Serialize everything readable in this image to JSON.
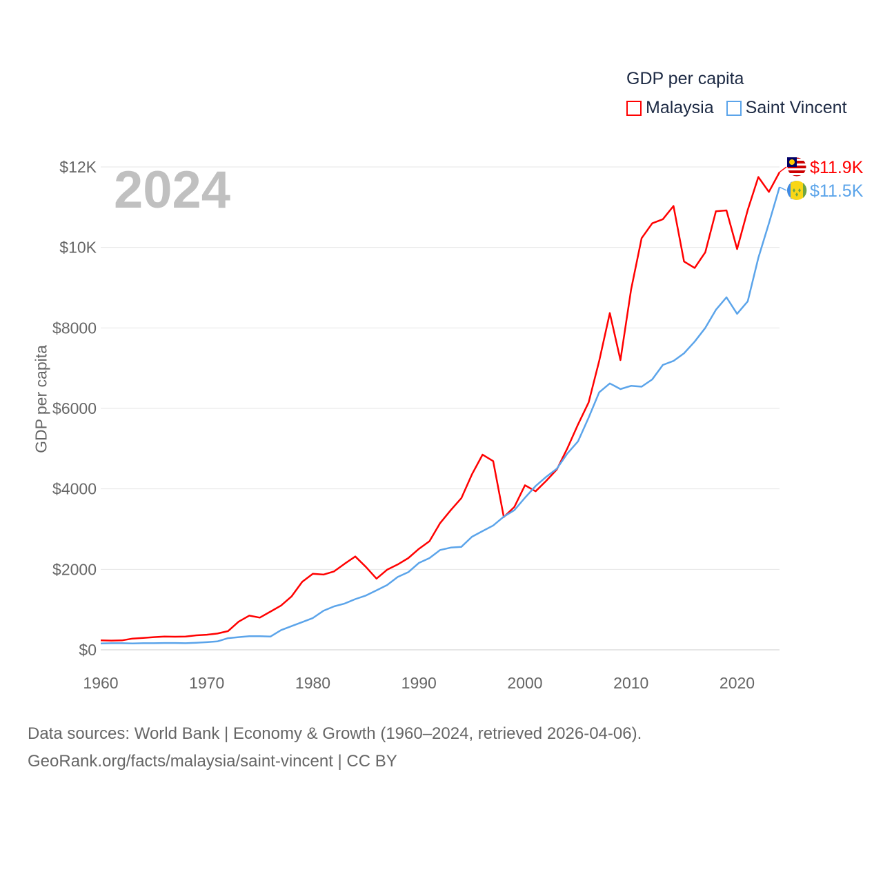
{
  "chart_data": {
    "type": "line",
    "title": "GDP per capita",
    "year_label": "2024",
    "ylabel": "GDP per capita",
    "xlabel": "",
    "xlim": [
      1960,
      2024
    ],
    "ylim": [
      0,
      12000
    ],
    "x_ticks": [
      "1960",
      "1970",
      "1980",
      "1990",
      "2000",
      "2010",
      "2020"
    ],
    "y_ticks": [
      {
        "value": 0,
        "label": "$0"
      },
      {
        "value": 2000,
        "label": "$2000"
      },
      {
        "value": 4000,
        "label": "$4000"
      },
      {
        "value": 6000,
        "label": "$6000"
      },
      {
        "value": 8000,
        "label": "$8000"
      },
      {
        "value": 10000,
        "label": "$10K"
      },
      {
        "value": 12000,
        "label": "$12K"
      }
    ],
    "grid": true,
    "legend_placement": "top-right",
    "x_start": 1960,
    "series": [
      {
        "name": "Malaysia",
        "color": "#ff0000",
        "end_label": "$11.9K",
        "values": [
          235,
          230,
          235,
          280,
          295,
          315,
          330,
          325,
          330,
          360,
          375,
          405,
          465,
          700,
          850,
          800,
          950,
          1100,
          1330,
          1690,
          1890,
          1870,
          1950,
          2140,
          2320,
          2060,
          1770,
          1990,
          2120,
          2280,
          2510,
          2700,
          3150,
          3470,
          3770,
          4360,
          4850,
          4690,
          3300,
          3550,
          4090,
          3940,
          4200,
          4480,
          5010,
          5600,
          6150,
          7180,
          8370,
          7200,
          8950,
          10230,
          10600,
          10700,
          11030,
          9650,
          9490,
          9880,
          10900,
          10920,
          9960,
          10930,
          11750,
          11380,
          11870
        ]
      },
      {
        "name": "Saint Vincent",
        "color": "#5ba4ea",
        "end_label": "$11.5K",
        "values": [
          160,
          165,
          165,
          160,
          165,
          165,
          170,
          170,
          165,
          175,
          190,
          210,
          290,
          315,
          340,
          340,
          330,
          490,
          590,
          690,
          790,
          970,
          1080,
          1150,
          1260,
          1350,
          1480,
          1610,
          1810,
          1930,
          2160,
          2280,
          2480,
          2540,
          2560,
          2810,
          2950,
          3090,
          3310,
          3470,
          3780,
          4070,
          4300,
          4500,
          4880,
          5180,
          5770,
          6400,
          6620,
          6480,
          6560,
          6540,
          6720,
          7080,
          7180,
          7370,
          7660,
          8000,
          8450,
          8760,
          8350,
          8660,
          9740,
          10600,
          11500
        ]
      }
    ]
  },
  "footer": {
    "line1": "Data sources: World Bank | Economy & Growth (1960–2024, retrieved 2026-04-06).",
    "line2": "GeoRank.org/facts/malaysia/saint-vincent | CC BY"
  }
}
